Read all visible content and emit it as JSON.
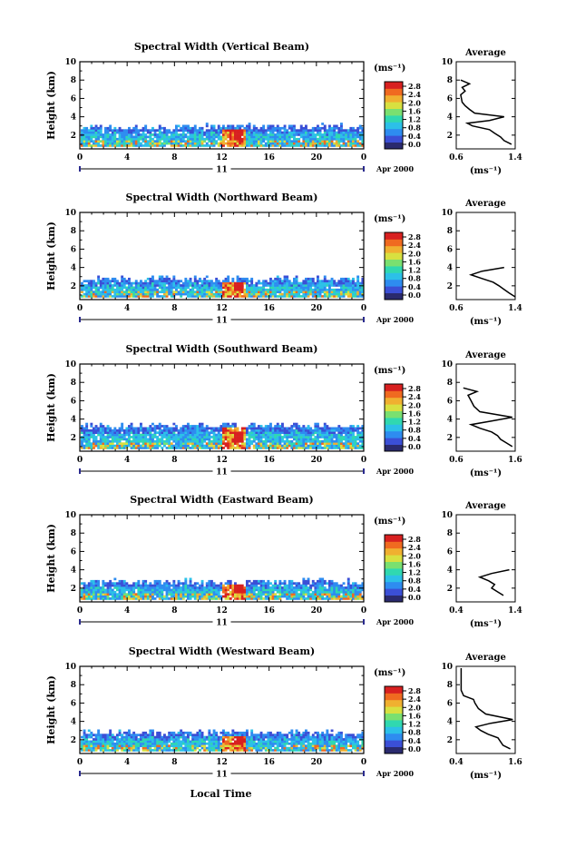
{
  "date_label": "Apr 2000",
  "day_label": "11",
  "time_axis_label": "Local Time",
  "colorbar_unit": "(ms⁻¹)",
  "colorbar_ticks": [
    "0.0",
    "0.4",
    "0.8",
    "1.2",
    "1.6",
    "2.0",
    "2.4",
    "2.8"
  ],
  "colorbar_colors": [
    "#2a2a6e",
    "#3b4fd6",
    "#2e8cf0",
    "#2cc0e8",
    "#30d8b0",
    "#7ae070",
    "#d8e040",
    "#f0b030",
    "#f06a20",
    "#d82020"
  ],
  "average_title": "Average",
  "average_unit": "(ms⁻¹)",
  "chart_data": [
    {
      "type": "heatmap",
      "title": "Spectral Width (Vertical Beam)",
      "ylabel": "Height (km)",
      "xlabel": "Local Time",
      "x_ticks": [
        "0",
        "4",
        "8",
        "12",
        "16",
        "20",
        "0"
      ],
      "y_ticks": [
        "2",
        "4",
        "6",
        "8",
        "10"
      ],
      "xlim": [
        0,
        24
      ],
      "ylim": [
        0.5,
        10
      ],
      "color_range": [
        0.0,
        2.8
      ],
      "echo_top_km": 2.8,
      "hot_spot_hours": [
        12.0,
        14.0
      ],
      "average_profile": {
        "xlim": [
          0.6,
          1.4
        ],
        "x_ticks": [
          "0.6",
          "1.4"
        ],
        "height_km": [
          1.0,
          1.4,
          1.8,
          2.2,
          2.6,
          3.0,
          3.3,
          3.6,
          4.0,
          4.4,
          4.8,
          5.2,
          5.6,
          6.0,
          6.4,
          6.8,
          7.2,
          7.6,
          8.0
        ],
        "width_ms": [
          1.35,
          1.25,
          1.2,
          1.12,
          1.05,
          0.82,
          0.75,
          1.05,
          1.25,
          0.85,
          0.78,
          0.72,
          0.68,
          0.67,
          0.66,
          0.72,
          0.68,
          0.78,
          0.66
        ]
      }
    },
    {
      "type": "heatmap",
      "title": "Spectral Width (Northward Beam)",
      "ylabel": "Height (km)",
      "xlabel": "Local Time",
      "x_ticks": [
        "0",
        "4",
        "8",
        "12",
        "16",
        "20",
        "0"
      ],
      "y_ticks": [
        "2",
        "4",
        "6",
        "8",
        "10"
      ],
      "xlim": [
        0,
        24
      ],
      "ylim": [
        0.5,
        10
      ],
      "color_range": [
        0.0,
        2.8
      ],
      "echo_top_km": 2.6,
      "hot_spot_hours": [
        12.0,
        14.0
      ],
      "average_profile": {
        "xlim": [
          0.6,
          1.4
        ],
        "x_ticks": [
          "0.6",
          "1.4"
        ],
        "height_km": [
          0.8,
          1.2,
          1.6,
          2.0,
          2.4,
          2.8,
          3.2,
          3.6,
          4.0
        ],
        "width_ms": [
          1.4,
          1.32,
          1.25,
          1.18,
          1.1,
          0.95,
          0.8,
          0.95,
          1.25
        ]
      }
    },
    {
      "type": "heatmap",
      "title": "Spectral Width (Southward Beam)",
      "ylabel": "Height (km)",
      "xlabel": "Local Time",
      "x_ticks": [
        "0",
        "4",
        "8",
        "12",
        "16",
        "20",
        "0"
      ],
      "y_ticks": [
        "2",
        "4",
        "6",
        "8",
        "10"
      ],
      "xlim": [
        0,
        24
      ],
      "ylim": [
        0.5,
        10
      ],
      "color_range": [
        0.0,
        2.8
      ],
      "echo_top_km": 3.2,
      "hot_spot_hours": [
        12.0,
        14.0
      ],
      "average_profile": {
        "xlim": [
          0.6,
          1.6
        ],
        "x_ticks": [
          "0.6",
          "1.6"
        ],
        "height_km": [
          1.0,
          1.4,
          1.8,
          2.2,
          2.6,
          3.0,
          3.4,
          3.8,
          4.2,
          4.8,
          5.4,
          6.0,
          6.6,
          7.0,
          7.4
        ],
        "width_ms": [
          1.55,
          1.45,
          1.35,
          1.3,
          1.2,
          1.0,
          0.85,
          1.2,
          1.55,
          1.0,
          0.9,
          0.85,
          0.8,
          0.95,
          0.72
        ]
      }
    },
    {
      "type": "heatmap",
      "title": "Spectral Width (Eastward Beam)",
      "ylabel": "Height (km)",
      "xlabel": "Local Time",
      "x_ticks": [
        "0",
        "4",
        "8",
        "12",
        "16",
        "20",
        "0"
      ],
      "y_ticks": [
        "2",
        "4",
        "6",
        "8",
        "10"
      ],
      "xlim": [
        0,
        24
      ],
      "ylim": [
        0.5,
        10
      ],
      "color_range": [
        0.0,
        2.8
      ],
      "echo_top_km": 2.6,
      "hot_spot_hours": [
        12.0,
        14.0
      ],
      "average_profile": {
        "xlim": [
          0.4,
          1.4
        ],
        "x_ticks": [
          "0.4",
          "1.4"
        ],
        "height_km": [
          1.2,
          1.6,
          2.0,
          2.4,
          2.8,
          3.2,
          3.6,
          4.0
        ],
        "width_ms": [
          1.2,
          1.1,
          1.0,
          1.05,
          0.95,
          0.8,
          1.0,
          1.3
        ]
      }
    },
    {
      "type": "heatmap",
      "title": "Spectral Width (Westward Beam)",
      "ylabel": "Height (km)",
      "xlabel": "Local Time",
      "x_ticks": [
        "0",
        "4",
        "8",
        "12",
        "16",
        "20",
        "0"
      ],
      "y_ticks": [
        "2",
        "4",
        "6",
        "8",
        "10"
      ],
      "xlim": [
        0,
        24
      ],
      "ylim": [
        0.5,
        10
      ],
      "color_range": [
        0.0,
        2.8
      ],
      "echo_top_km": 2.7,
      "hot_spot_hours": [
        12.0,
        14.0
      ],
      "average_profile": {
        "xlim": [
          0.4,
          1.6
        ],
        "x_ticks": [
          "0.4",
          "1.6"
        ],
        "height_km": [
          1.0,
          1.4,
          1.8,
          2.2,
          2.6,
          3.0,
          3.4,
          3.8,
          4.2,
          4.8,
          5.4,
          6.0,
          6.4,
          6.8,
          7.4,
          8.2,
          9.0,
          9.8
        ],
        "width_ms": [
          1.5,
          1.35,
          1.3,
          1.25,
          1.05,
          0.9,
          0.8,
          1.1,
          1.55,
          1.0,
          0.85,
          0.78,
          0.75,
          0.55,
          0.5,
          0.5,
          0.5,
          0.5
        ]
      }
    }
  ]
}
